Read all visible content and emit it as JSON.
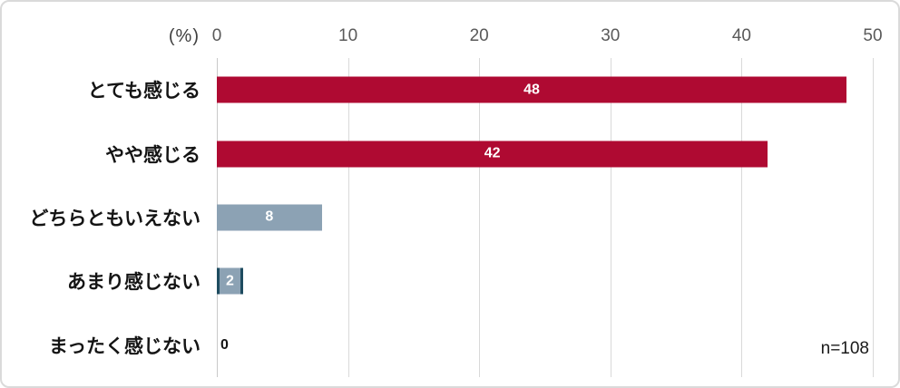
{
  "chart": {
    "unit_label": "(%)",
    "sample_label": "n=108",
    "axis": {
      "min": 0,
      "max": 50,
      "ticks": [
        0,
        10,
        20,
        30,
        40,
        50
      ]
    }
  },
  "chart_data": {
    "type": "bar",
    "orientation": "horizontal",
    "title": "",
    "xlabel": "(%)",
    "ylabel": "",
    "xlim": [
      0,
      50
    ],
    "grid": true,
    "categories": [
      "とても感じる",
      "やや感じる",
      "どちらともいえない",
      "あまり感じない",
      "まったく感じない"
    ],
    "values": [
      48,
      42,
      8,
      2,
      0
    ],
    "bar_colors": [
      "#AF0A32",
      "#AF0A32",
      "#8CA2B4",
      "#8CA2B4",
      "none"
    ],
    "bar_edge_colors": [
      null,
      null,
      null,
      "#1E4C60",
      null
    ],
    "annotation": "n=108"
  },
  "colors": {
    "accent_red": "#AF0A32",
    "accent_blue_gray": "#8CA2B4",
    "bar_edge_dark": "#1E4C60",
    "gridline": "#D9D9D9",
    "axis_line": "#C9C9C9",
    "tick_text": "#595959",
    "label_text": "#141414",
    "frame_border": "#DADADA"
  }
}
